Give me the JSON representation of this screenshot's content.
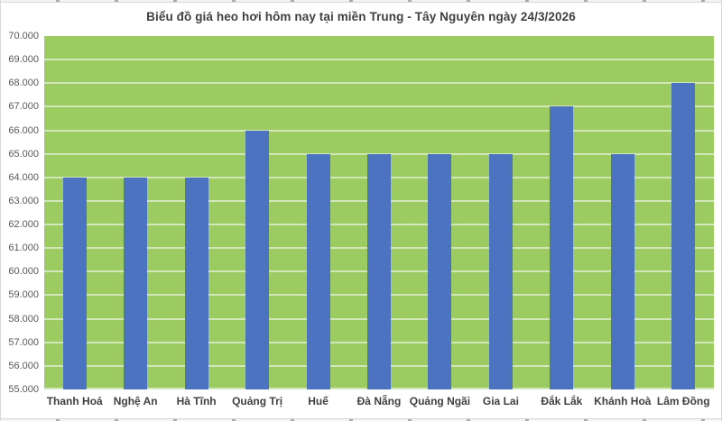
{
  "chart_data": {
    "type": "bar",
    "title": "Biểu đồ giá heo hơi hôm nay tại miền Trung - Tây Nguyên ngày 24/3/2026",
    "categories": [
      "Thanh Hoá",
      "Nghệ An",
      "Hà Tĩnh",
      "Quảng Trị",
      "Huế",
      "Đà Nẵng",
      "Quảng Ngãi",
      "Gia Lai",
      "Đắk Lắk",
      "Khánh Hoà",
      "Lâm Đồng"
    ],
    "values": [
      64000,
      64000,
      64000,
      66000,
      65000,
      65000,
      65000,
      65000,
      67000,
      65000,
      68000
    ],
    "xlabel": "",
    "ylabel": "",
    "ylim": [
      55000,
      70000
    ],
    "ytick_step": 1000,
    "ytick_values": [
      70000,
      69000,
      68000,
      67000,
      66000,
      65000,
      64000,
      63000,
      62000,
      61000,
      60000,
      59000,
      58000,
      57000,
      56000,
      55000
    ],
    "ytick_labels": [
      "70.000",
      "69.000",
      "68.000",
      "67.000",
      "66.000",
      "65.000",
      "64.000",
      "63.000",
      "62.000",
      "61.000",
      "60.000",
      "59.000",
      "58.000",
      "57.000",
      "56.000",
      "55.000"
    ],
    "grid": true,
    "legend_position": "none",
    "colors": {
      "bar": "#4C73C0",
      "plot_background": "#9CCB62",
      "gridline": "rgba(255,255,255,0.55)",
      "title_text": "#3F3F3F",
      "y_tick_text": "#595959",
      "x_tick_text": "#404040",
      "frame_border": "#D9D9D9"
    }
  }
}
